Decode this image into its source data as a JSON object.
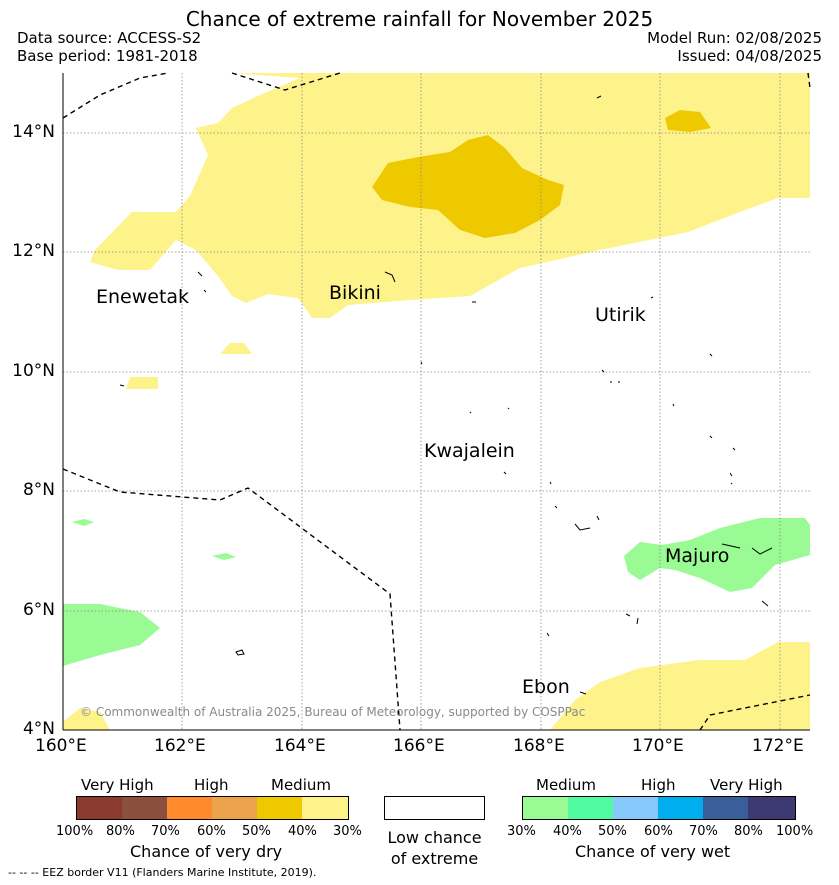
{
  "title": "Chance of extreme rainfall for November 2025",
  "header": {
    "data_source": "Data source: ACCESS-S2",
    "base_period": "Base period: 1981-2018",
    "model_run": "Model Run: 02/08/2025",
    "issued": "Issued: 04/08/2025"
  },
  "map": {
    "lat_ticks": [
      "14°N",
      "12°N",
      "10°N",
      "8°N",
      "6°N",
      "4°N"
    ],
    "lon_ticks": [
      "160°E",
      "162°E",
      "164°E",
      "166°E",
      "168°E",
      "170°E",
      "172°E"
    ],
    "places": {
      "enewetak": "Enewetak",
      "bikini": "Bikini",
      "utirik": "Utirik",
      "kwajalein": "Kwajalein",
      "majuro": "Majuro",
      "ebon": "Ebon"
    },
    "copyright": "© Commonwealth of Australia 2025, Bureau of Meteorology, supported by COSPPac",
    "colors": {
      "dry_medium_light": "#fdf38a",
      "dry_medium_dark": "#eec900",
      "wet_medium_light": "#9afa94"
    }
  },
  "legend": {
    "dry": {
      "levels": [
        "Very High",
        "High",
        "Medium"
      ],
      "ticks": [
        "100%",
        "80%",
        "70%",
        "60%",
        "50%",
        "40%",
        "30%"
      ],
      "caption": "Chance of very dry",
      "colors": [
        "#8b3a2e",
        "#8b4f3e",
        "#ff8a2b",
        "#eca34c",
        "#eec900",
        "#fdf38a"
      ]
    },
    "low": {
      "line1": "Low chance",
      "line2": "of extreme"
    },
    "wet": {
      "levels": [
        "Medium",
        "High",
        "Very High"
      ],
      "ticks": [
        "30%",
        "40%",
        "50%",
        "60%",
        "70%",
        "80%",
        "100%"
      ],
      "caption": "Chance of very wet",
      "colors": [
        "#9afa94",
        "#50fa9f",
        "#86c8fb",
        "#00aef0",
        "#3b5e9a",
        "#3d3a73"
      ]
    },
    "eez_note": "--  --  -- EEZ border V11 (Flanders Marine Institute, 2019)."
  }
}
